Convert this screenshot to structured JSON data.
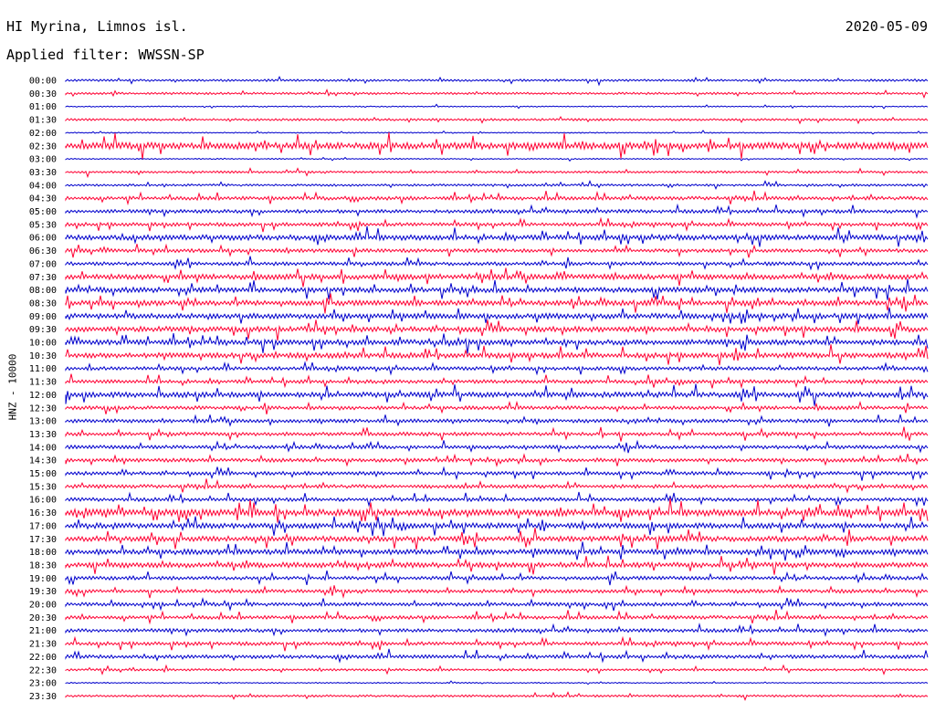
{
  "header": {
    "station": "HI Myrina, Limnos isl.",
    "date": "2020-05-09",
    "filter": "Applied filter: WWSSN-SP"
  },
  "colors": {
    "line_a": "#0000cc",
    "line_b": "#ff0033",
    "text": "#000000"
  },
  "chart_data": {
    "type": "line",
    "title": "HI Myrina, Limnos isl.",
    "subtitle": "Applied filter: WWSSN-SP",
    "date": "2020-05-09",
    "ylabel": "HNZ - 10000",
    "xlabel": "",
    "rows": [
      "00:00",
      "00:30",
      "01:00",
      "01:30",
      "02:00",
      "02:30",
      "03:00",
      "03:30",
      "04:00",
      "04:30",
      "05:00",
      "05:30",
      "06:00",
      "06:30",
      "07:00",
      "07:30",
      "08:00",
      "08:30",
      "09:00",
      "09:30",
      "10:00",
      "10:30",
      "11:00",
      "11:30",
      "12:00",
      "12:30",
      "13:00",
      "13:30",
      "14:00",
      "14:30",
      "15:00",
      "15:30",
      "16:00",
      "16:30",
      "17:00",
      "17:30",
      "18:00",
      "18:30",
      "19:00",
      "19:30",
      "20:00",
      "20:30",
      "21:00",
      "21:30",
      "22:00",
      "22:30",
      "23:00",
      "23:30"
    ],
    "series_colors": [
      "blue",
      "red"
    ],
    "trace_levels": [
      1,
      1,
      0,
      1,
      0,
      4,
      0,
      1,
      1,
      2,
      2,
      2,
      3,
      2,
      2,
      3,
      3,
      3,
      3,
      3,
      3,
      3,
      2,
      2,
      3,
      2,
      2,
      2,
      2,
      2,
      2,
      2,
      2,
      4,
      3,
      3,
      3,
      3,
      2,
      2,
      2,
      2,
      2,
      2,
      2,
      1,
      0,
      1
    ],
    "grid": false,
    "legend": "none"
  }
}
